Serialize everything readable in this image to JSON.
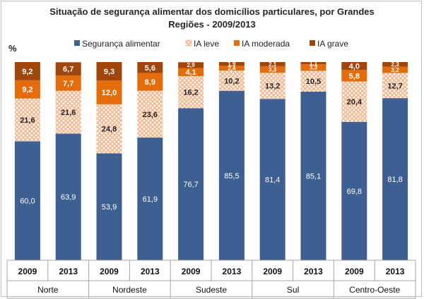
{
  "title_line1": "Situação de segurança alimentar dos domicílios particulares, por Grandes",
  "title_line2": "Regiões - 2009/2013",
  "y_unit": "%",
  "colors": {
    "seguranca": "#3E5F92",
    "leve_base": "#FFFFFF",
    "leve_pattern": "#F5B48A",
    "moderada": "#E46C0A",
    "grave": "#A0450C"
  },
  "chart_data": {
    "type": "bar",
    "stacked": true,
    "ylim": [
      0,
      100
    ],
    "legend_position": "top",
    "legend": [
      "Segurança alimentar",
      "IA leve",
      "IA moderada",
      "IA grave"
    ],
    "groups": [
      "Norte",
      "Nordeste",
      "Sudeste",
      "Sul",
      "Centro-Oeste"
    ],
    "categories": [
      "2009",
      "2013",
      "2009",
      "2013",
      "2009",
      "2013",
      "2009",
      "2013",
      "2009",
      "2013"
    ],
    "series": [
      {
        "name": "Segurança alimentar",
        "values": [
          60.0,
          63.9,
          53.9,
          61.9,
          76.7,
          85.5,
          81.4,
          85.1,
          69.8,
          81.8
        ],
        "labels": [
          "60,0",
          "63,9",
          "53,9",
          "61,9",
          "76,7",
          "85,5",
          "81,4",
          "85,1",
          "69,8",
          "81,8"
        ]
      },
      {
        "name": "IA leve",
        "values": [
          21.6,
          21.6,
          24.8,
          23.6,
          16.2,
          10.2,
          13.2,
          10.5,
          20.4,
          12.7
        ],
        "labels": [
          "21,6",
          "21,6",
          "24,8",
          "23,6",
          "16,2",
          "10,2",
          "13,2",
          "10,5",
          "20,4",
          "12,7"
        ]
      },
      {
        "name": "IA moderada",
        "values": [
          9.2,
          7.7,
          12.0,
          8.9,
          4.1,
          2.4,
          3.3,
          3.3,
          5.8,
          3.2
        ],
        "labels": [
          "9,2",
          "7,7",
          "12,0",
          "8,9",
          "4,1",
          "2,4",
          "3,3",
          "3,3",
          "5,8",
          "3,2"
        ]
      },
      {
        "name": "IA grave",
        "values": [
          9.2,
          6.7,
          9.3,
          5.6,
          2.9,
          1.9,
          2.1,
          1.1,
          4.0,
          2.3
        ],
        "labels": [
          "9,2",
          "6,7",
          "9,3",
          "5,6",
          "2,9",
          "1,9",
          "2,1",
          "1,1",
          "4,0",
          "2,3"
        ]
      }
    ]
  }
}
